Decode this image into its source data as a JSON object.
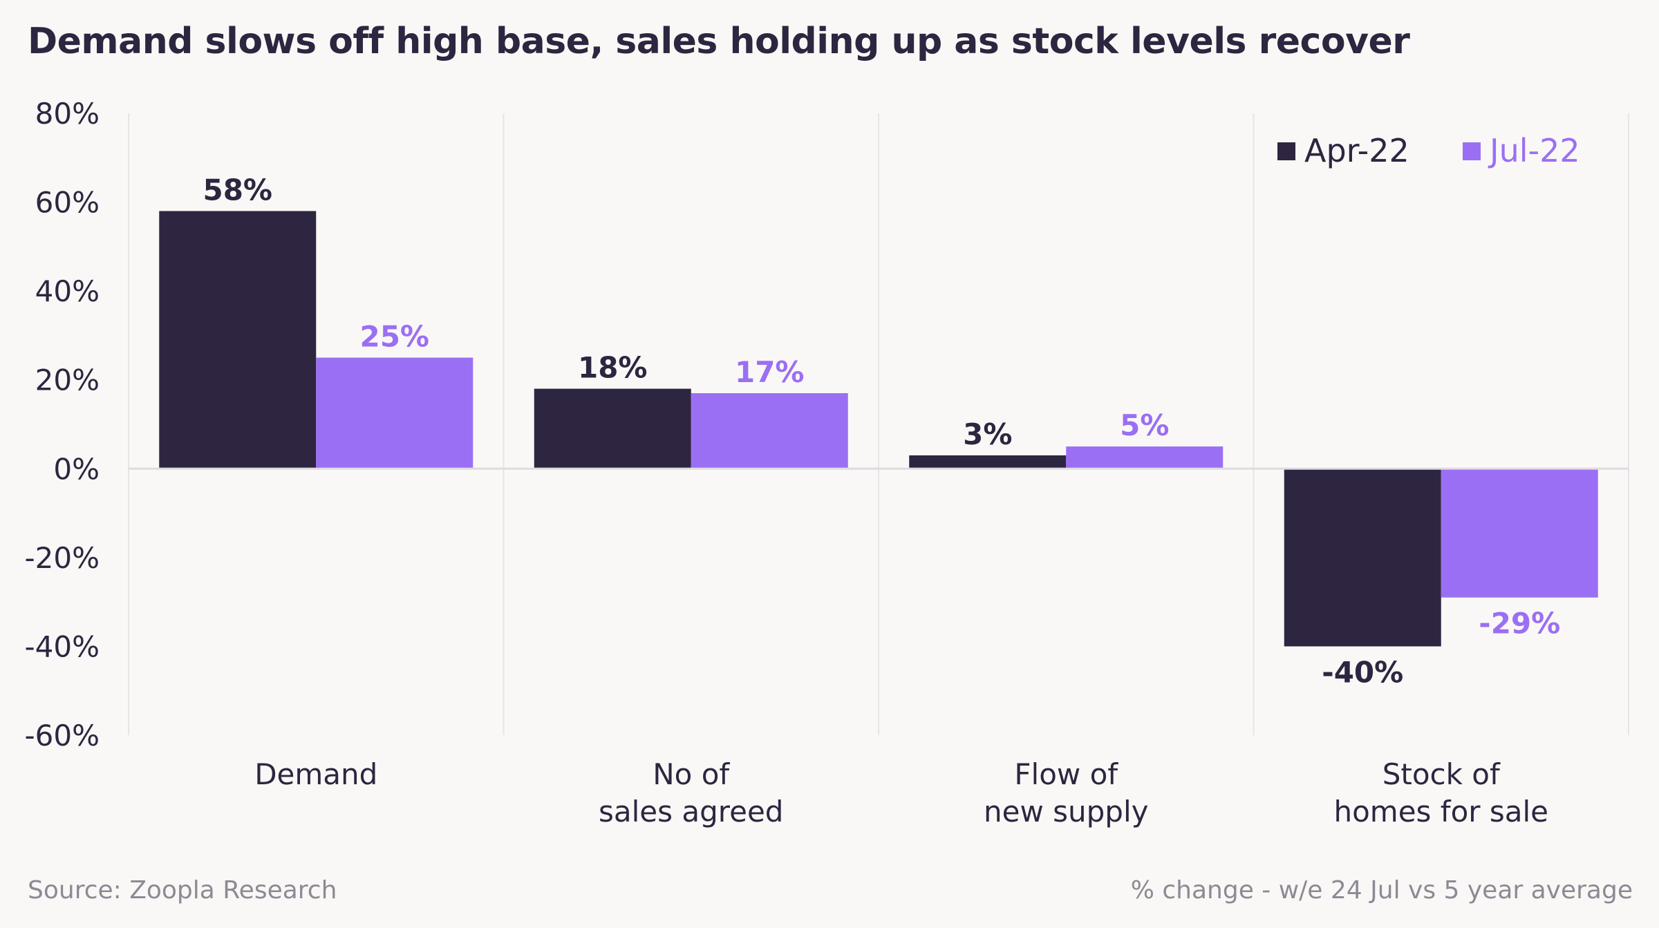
{
  "chart_data": {
    "type": "bar",
    "title": "Demand slows off high base, sales holding up as stock levels recover",
    "categories": [
      [
        "Demand"
      ],
      [
        "No of",
        "sales agreed"
      ],
      [
        "Flow of",
        "new supply"
      ],
      [
        "Stock of",
        "homes for sale"
      ]
    ],
    "series": [
      {
        "name": "Apr-22",
        "color": "#2e2640",
        "values": [
          58,
          18,
          3,
          -40
        ],
        "labels": [
          "58%",
          "18%",
          "3%",
          "-40%"
        ]
      },
      {
        "name": "Jul-22",
        "color": "#9b6ff3",
        "values": [
          25,
          17,
          5,
          -29
        ],
        "labels": [
          "25%",
          "17%",
          "5%",
          "-29%"
        ]
      }
    ],
    "ylim": [
      -60,
      80
    ],
    "yticks": [
      80,
      60,
      40,
      20,
      0,
      -20,
      -40,
      -60
    ],
    "ytick_labels": [
      "80%",
      "60%",
      "40%",
      "20%",
      "0%",
      "-20%",
      "-40%",
      "-60%"
    ],
    "xlabel": "",
    "ylabel": "",
    "legend_position": "top-right",
    "grid": "vertical category separators",
    "source": "Source: Zoopla Research",
    "note": "% change - w/e 24 Jul vs 5 year average"
  }
}
